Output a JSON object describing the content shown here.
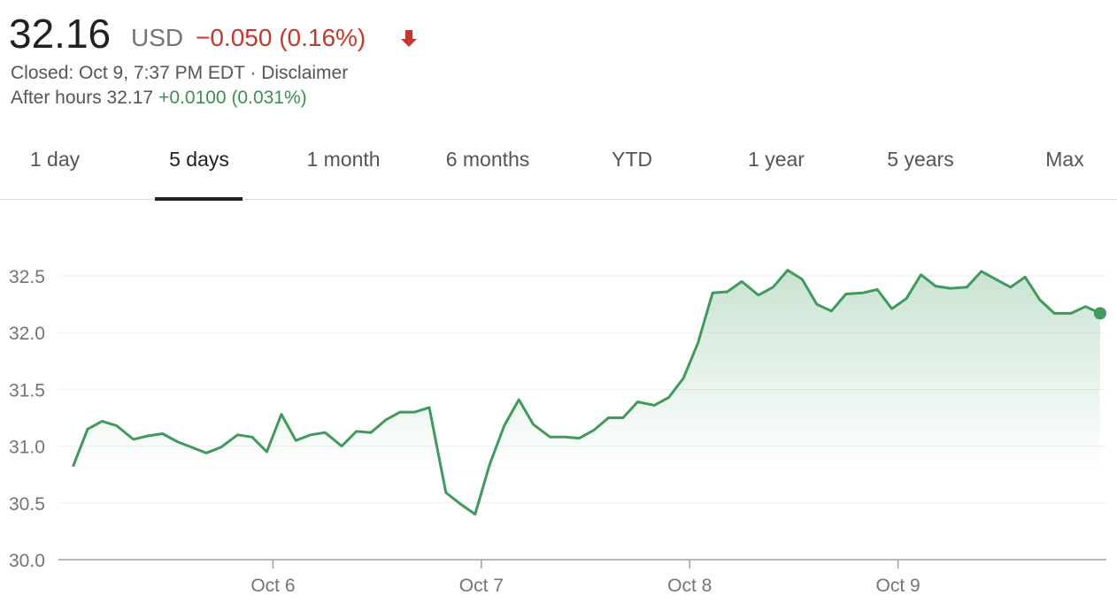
{
  "header": {
    "price": "32.16",
    "currency": "USD",
    "change": "−0.050 (0.16%)",
    "closed": "Closed: Oct 9, 7:37 PM EDT · ",
    "disclaimer": "Disclaimer",
    "after_hours": "After hours 32.17",
    "after_change": "+0.0100 (0.031%)"
  },
  "tabs": {
    "items": [
      "1 day",
      "5 days",
      "1 month",
      "6 months",
      "YTD",
      "1 year",
      "5 years",
      "Max"
    ],
    "selected": 1
  },
  "chart_data": {
    "type": "line",
    "color": "#3f9a5c",
    "grid": true,
    "x": [
      5.04,
      5.11,
      5.18,
      5.25,
      5.33,
      5.4,
      5.47,
      5.54,
      5.61,
      5.68,
      5.75,
      5.83,
      5.9,
      5.97,
      6.04,
      6.11,
      6.18,
      6.25,
      6.33,
      6.4,
      6.47,
      6.54,
      6.61,
      6.68,
      6.75,
      6.83,
      6.9,
      6.97,
      7.04,
      7.11,
      7.18,
      7.25,
      7.33,
      7.4,
      7.47,
      7.54,
      7.61,
      7.68,
      7.75,
      7.83,
      7.9,
      7.97,
      8.04,
      8.11,
      8.18,
      8.25,
      8.33,
      8.4,
      8.47,
      8.54,
      8.61,
      8.68,
      8.75,
      8.83,
      8.9,
      8.97,
      9.04,
      9.11,
      9.18,
      9.25,
      9.33,
      9.4,
      9.47,
      9.54,
      9.61,
      9.68,
      9.75,
      9.83,
      9.9,
      9.97
    ],
    "values": [
      30.82,
      31.15,
      31.22,
      31.18,
      31.06,
      31.09,
      31.11,
      31.04,
      30.99,
      30.94,
      30.99,
      31.1,
      31.08,
      30.95,
      31.28,
      31.05,
      31.1,
      31.12,
      31.0,
      31.13,
      31.12,
      31.23,
      31.3,
      31.3,
      31.34,
      30.59,
      30.49,
      30.4,
      30.84,
      31.18,
      31.41,
      31.19,
      31.08,
      31.08,
      31.07,
      31.14,
      31.25,
      31.25,
      31.39,
      31.36,
      31.43,
      31.6,
      31.91,
      32.35,
      32.36,
      32.45,
      32.33,
      32.4,
      32.55,
      32.47,
      32.25,
      32.19,
      32.34,
      32.35,
      32.38,
      32.21,
      32.3,
      32.51,
      32.41,
      32.39,
      32.4,
      32.54,
      32.47,
      32.4,
      32.49,
      32.29,
      32.17,
      32.17,
      32.23,
      32.17
    ],
    "xlim": [
      4.97,
      10.0
    ],
    "xticks": [
      {
        "value": 6,
        "label": "Oct 6"
      },
      {
        "value": 7,
        "label": "Oct 7"
      },
      {
        "value": 8,
        "label": "Oct 8"
      },
      {
        "value": 9,
        "label": "Oct 9"
      }
    ],
    "ylim": [
      30,
      32.5
    ],
    "yticks": [
      {
        "value": 30,
        "label": "30.0"
      },
      30.5,
      {
        "value": 31,
        "label": "31.0"
      },
      31.5,
      {
        "value": 32,
        "label": "32.0"
      },
      32.5
    ]
  }
}
